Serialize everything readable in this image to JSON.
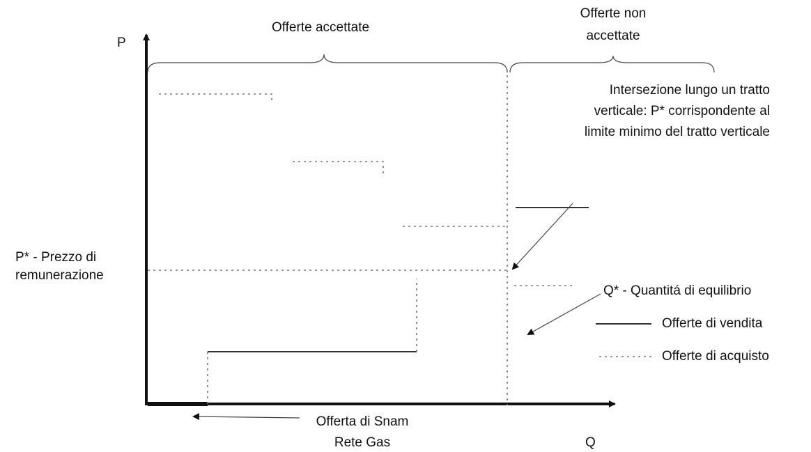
{
  "axes": {
    "y_label": "P",
    "x_label": "Q"
  },
  "braces": {
    "accepted": "Offerte accettate",
    "not_accepted": [
      "Offerte non",
      "accettate"
    ]
  },
  "annotations": {
    "intersection": [
      "Intersezione lungo un tratto",
      "verticale: P* corrispondente al",
      "limite minimo del tratto verticale"
    ],
    "price": [
      "P* - Prezzo di",
      "remunerazione"
    ],
    "quantity": "Q* - Quantitá di equilibrio",
    "snam": [
      "Offerta di Snam",
      "Rete Gas"
    ]
  },
  "legend": {
    "sell": "Offerte di vendita",
    "buy": "Offerte di acquisto"
  }
}
